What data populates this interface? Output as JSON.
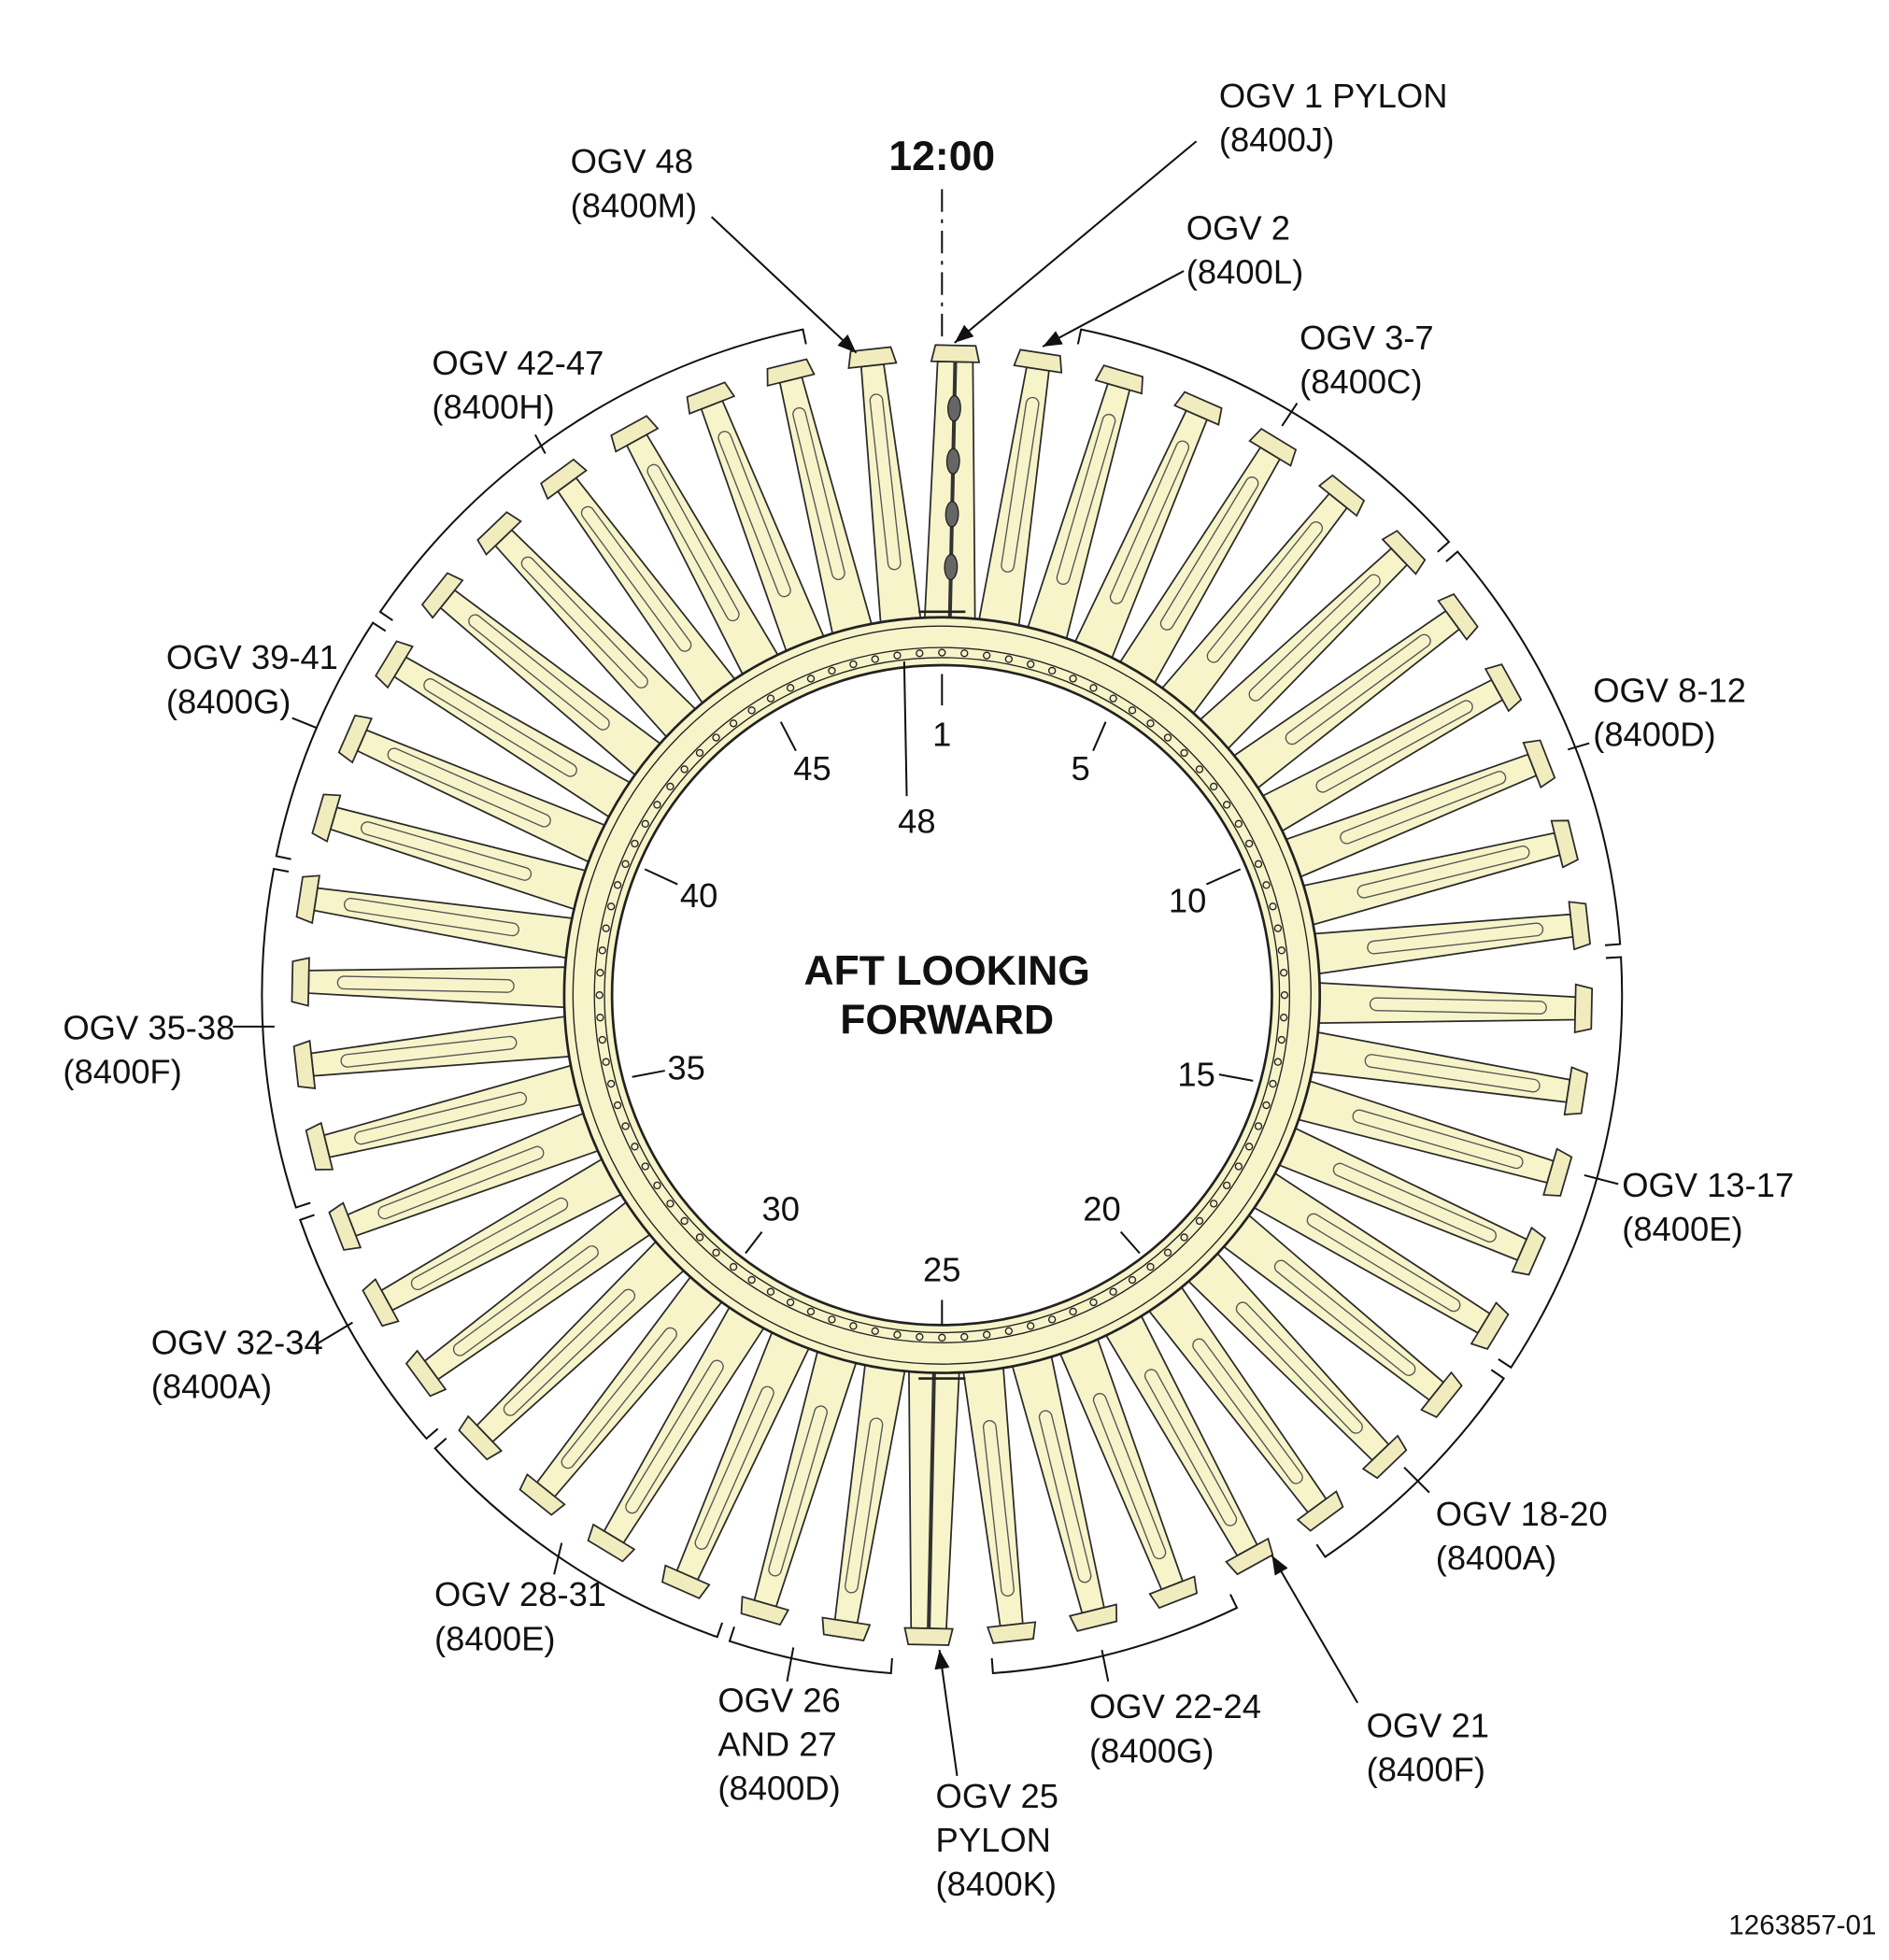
{
  "clock": "12:00",
  "view_label": {
    "line1": "AFT LOOKING",
    "line2": "FORWARD"
  },
  "callouts": [
    {
      "lines": [
        "OGV 1 PYLON",
        "(8400J)"
      ]
    },
    {
      "lines": [
        "OGV 2",
        "(8400L)"
      ]
    },
    {
      "lines": [
        "OGV 48",
        "(8400M)"
      ]
    },
    {
      "lines": [
        "OGV 3-7",
        "(8400C)"
      ]
    },
    {
      "lines": [
        "OGV 42-47",
        "(8400H)"
      ]
    },
    {
      "lines": [
        "OGV 39-41",
        "(8400G)"
      ]
    },
    {
      "lines": [
        "OGV 8-12",
        "(8400D)"
      ]
    },
    {
      "lines": [
        "OGV 35-38",
        "(8400F)"
      ]
    },
    {
      "lines": [
        "OGV 13-17",
        "(8400E)"
      ]
    },
    {
      "lines": [
        "OGV 32-34",
        "(8400A)"
      ]
    },
    {
      "lines": [
        "OGV 18-20",
        "(8400A)"
      ]
    },
    {
      "lines": [
        "OGV 28-31",
        "(8400E)"
      ]
    },
    {
      "lines": [
        "OGV 26",
        "AND 27",
        "(8400D)"
      ]
    },
    {
      "lines": [
        "OGV 25",
        "PYLON",
        "(8400K)"
      ]
    },
    {
      "lines": [
        "OGV 22-24",
        "(8400G)"
      ]
    },
    {
      "lines": [
        "OGV 21",
        "(8400F)"
      ]
    }
  ],
  "position_numbers": [
    "1",
    "5",
    "10",
    "15",
    "20",
    "25",
    "30",
    "35",
    "40",
    "45",
    "48"
  ],
  "figure_id": "1263857-01"
}
